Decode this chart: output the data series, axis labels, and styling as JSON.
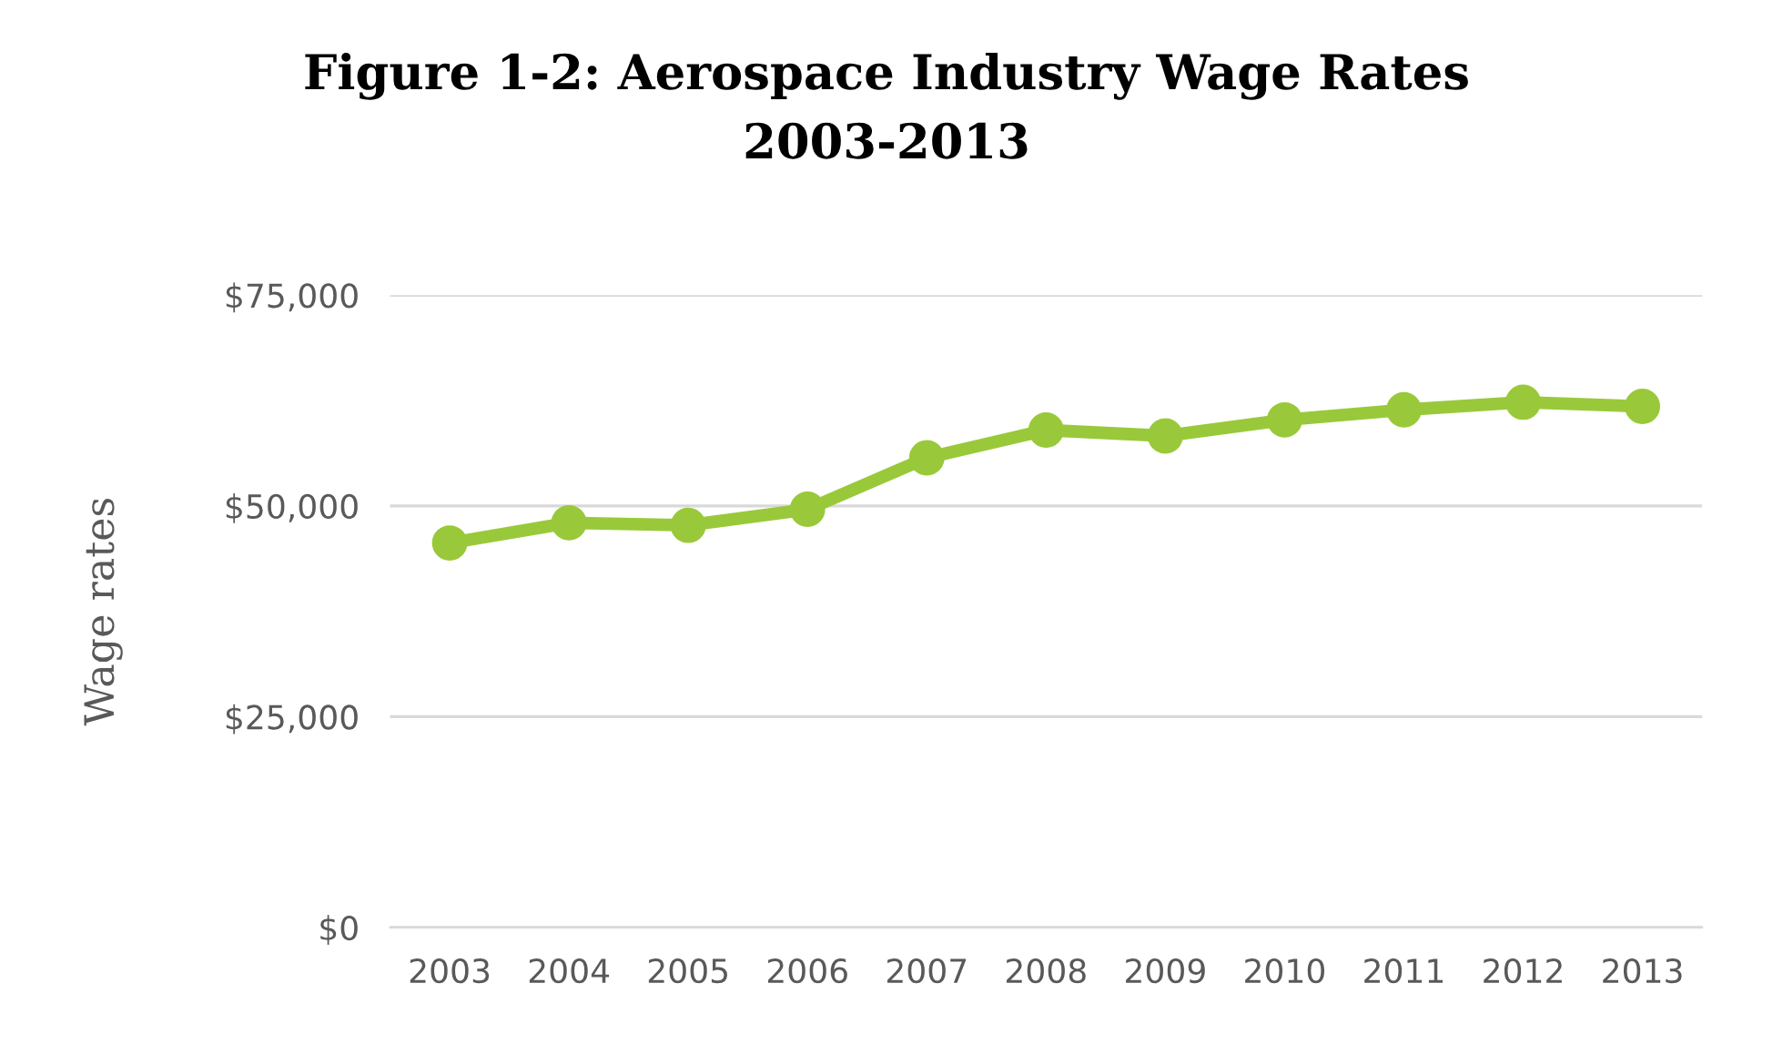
{
  "chart_data": {
    "type": "line",
    "title": "Figure 1-2: Aerospace Industry Wage Rates\n2003-2013",
    "ylabel": "Wage rates",
    "categories": [
      "2003",
      "2004",
      "2005",
      "2006",
      "2007",
      "2008",
      "2009",
      "2010",
      "2011",
      "2012",
      "2013"
    ],
    "series": [
      {
        "color": "#99c93a",
        "values": [
          45600,
          48000,
          47700,
          49600,
          55700,
          59000,
          58300,
          60200,
          61400,
          62300,
          61800
        ]
      }
    ],
    "ylim": [
      0,
      75000
    ],
    "yticks": [
      {
        "value": 0,
        "label": "$0"
      },
      {
        "value": 25000,
        "label": "$25,000"
      },
      {
        "value": 50000,
        "label": "$50,000"
      },
      {
        "value": 75000,
        "label": "$75,000"
      }
    ],
    "grid": "y",
    "marker": "circle",
    "line_style": "solid",
    "legend": false
  }
}
